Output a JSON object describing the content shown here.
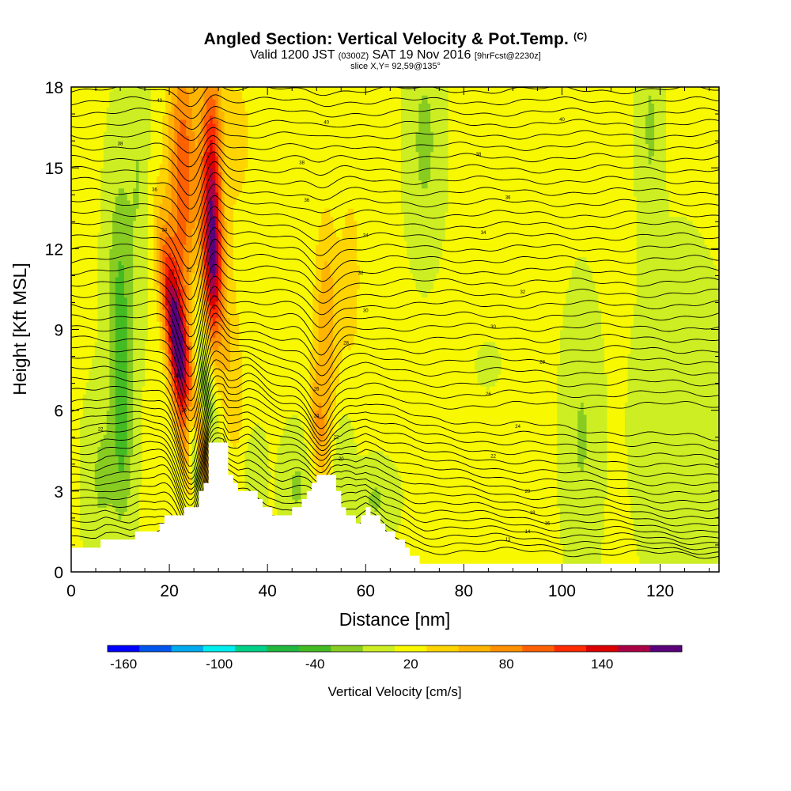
{
  "header": {
    "title": "Angled Section: Vertical Velocity & Pot.Temp.",
    "title_tag": "(C)",
    "valid_prefix": "Valid 1200 JST",
    "valid_utc": "(0300Z)",
    "valid_date": "SAT 19 Nov 2016",
    "forecast": "[9hrFcst@2230z]",
    "slice": "slice X,Y= 92,59@135°"
  },
  "chart_data": {
    "type": "heatmap",
    "xlabel": "Distance [nm]",
    "ylabel": "Height [Kft MSL]",
    "xlim": [
      0,
      132
    ],
    "ylim": [
      0,
      18
    ],
    "x_ticks": [
      0,
      20,
      40,
      60,
      80,
      100,
      120
    ],
    "y_ticks": [
      0,
      3,
      6,
      9,
      12,
      15,
      18
    ],
    "colorbar": {
      "label": "Vertical Velocity [cm/s]",
      "min": -170,
      "step": 20,
      "colors": [
        "#0000ff",
        "#0055ee",
        "#00aaee",
        "#00eeee",
        "#00d088",
        "#22b840",
        "#44bb22",
        "#88cc22",
        "#ccee22",
        "#f8f800",
        "#ffd400",
        "#ffb400",
        "#ff9000",
        "#ff6000",
        "#ff2a00",
        "#dd0000",
        "#aa0044",
        "#5a007a"
      ],
      "tick_values": [
        -160,
        -100,
        -40,
        20,
        80,
        140
      ]
    },
    "terrain": [
      [
        0,
        1
      ],
      [
        5,
        1
      ],
      [
        7,
        1.3
      ],
      [
        12,
        1.3
      ],
      [
        14,
        1.6
      ],
      [
        17,
        1.6
      ],
      [
        19,
        2
      ],
      [
        23,
        2.3
      ],
      [
        25,
        2.5
      ],
      [
        27,
        3.4
      ],
      [
        28,
        4.8
      ],
      [
        31,
        4.8
      ],
      [
        32,
        3.6
      ],
      [
        34,
        3
      ],
      [
        36,
        3.1
      ],
      [
        38,
        2.7
      ],
      [
        40,
        2.3
      ],
      [
        43,
        2.1
      ],
      [
        45,
        2.3
      ],
      [
        47,
        2.6
      ],
      [
        50,
        3.6
      ],
      [
        53,
        3.6
      ],
      [
        55,
        2.3
      ],
      [
        58,
        1.9
      ],
      [
        60,
        2.3
      ],
      [
        62,
        2.0
      ],
      [
        64,
        1.5
      ],
      [
        66,
        1.2
      ],
      [
        68,
        0.9
      ],
      [
        70,
        0.5
      ],
      [
        72,
        0.3
      ],
      [
        132,
        0.3
      ]
    ],
    "velocity_features": [
      {
        "x": 22,
        "z": 8.0,
        "sx": 1.6,
        "sz": 3.0,
        "shear": -0.7,
        "value": 165
      },
      {
        "x": 23,
        "z": 12.5,
        "sx": 2.2,
        "sz": 3.5,
        "shear": 0,
        "value": 60
      },
      {
        "x": 22.5,
        "z": 16.5,
        "sx": 2.2,
        "sz": 3.0,
        "shear": 0,
        "value": 50
      },
      {
        "x": 25,
        "z": 4.5,
        "sx": 0.9,
        "sz": 1.6,
        "shear": -0.6,
        "value": -130
      },
      {
        "x": 27.5,
        "z": 6.5,
        "sx": 1.4,
        "sz": 2.8,
        "shear": -0.4,
        "value": -55
      },
      {
        "x": 28.5,
        "z": 14.0,
        "sx": 1.5,
        "sz": 3.5,
        "shear": 0,
        "value": 120
      },
      {
        "x": 29,
        "z": 11.0,
        "sx": 1.2,
        "sz": 2.0,
        "shear": 0,
        "value": 60
      },
      {
        "x": 27,
        "z": 4.2,
        "sx": 1.5,
        "sz": 1.2,
        "shear": -0.5,
        "value": 75
      },
      {
        "x": 32,
        "z": 8.0,
        "sx": 2.0,
        "sz": 3.0,
        "shear": -0.5,
        "value": 35
      },
      {
        "x": 34,
        "z": 16,
        "sx": 4.5,
        "sz": 4.0,
        "shear": 0,
        "value": 20
      },
      {
        "x": 10,
        "z": 10.0,
        "sx": 1.8,
        "sz": 3.5,
        "shear": 0,
        "value": -45
      },
      {
        "x": 10.5,
        "z": 5.0,
        "sx": 1.5,
        "sz": 2.5,
        "shear": 0,
        "value": -35
      },
      {
        "x": 6,
        "z": 3.5,
        "sx": 2.0,
        "sz": 2.0,
        "shear": 0,
        "value": -25
      },
      {
        "x": 14,
        "z": 15,
        "sx": 1.5,
        "sz": 3.0,
        "shear": 0,
        "value": -22
      },
      {
        "x": 52,
        "z": 9.0,
        "sx": 1.8,
        "sz": 3.0,
        "shear": 0,
        "value": 55
      },
      {
        "x": 50.5,
        "z": 5.2,
        "sx": 1.3,
        "sz": 1.5,
        "shear": -0.4,
        "value": 45
      },
      {
        "x": 57,
        "z": 11,
        "sx": 1.5,
        "sz": 2.5,
        "shear": 0,
        "value": 30
      },
      {
        "x": 55,
        "z": 3.8,
        "sx": 1.5,
        "sz": 1.5,
        "shear": 0,
        "value": -25
      },
      {
        "x": 46,
        "z": 3.2,
        "sx": 2.0,
        "sz": 1.2,
        "shear": 0,
        "value": -25
      },
      {
        "x": 62,
        "z": 2.7,
        "sx": 2.5,
        "sz": 0.8,
        "shear": 0,
        "value": -25
      },
      {
        "x": 37,
        "z": 3.7,
        "sx": 1.5,
        "sz": 1.0,
        "shear": 0,
        "value": -25
      },
      {
        "x": 72,
        "z": 16,
        "sx": 2.2,
        "sz": 2.5,
        "shear": 0,
        "value": -28
      },
      {
        "x": 118,
        "z": 16.5,
        "sx": 1.5,
        "sz": 2.5,
        "shear": 0,
        "value": -25
      },
      {
        "x": 104,
        "z": 5.0,
        "sx": 2.3,
        "sz": 3.0,
        "shear": 0,
        "value": -24
      },
      {
        "x": 124,
        "z": 5.5,
        "sx": 5.0,
        "sz": 3.5,
        "shear": 0,
        "value": -22
      },
      {
        "x": 85,
        "z": 7.7,
        "sx": 1.2,
        "sz": 0.4,
        "shear": 0,
        "value": -22
      }
    ],
    "theta_labels": [
      {
        "x": 18,
        "z": 17.5,
        "text": "40"
      },
      {
        "x": 10,
        "z": 15.9,
        "text": "38"
      },
      {
        "x": 17,
        "z": 14.2,
        "text": "36"
      },
      {
        "x": 19,
        "z": 12.7,
        "text": "34"
      },
      {
        "x": 24,
        "z": 11.2,
        "text": "32"
      },
      {
        "x": 24,
        "z": 8.3,
        "text": "30"
      },
      {
        "x": 21.5,
        "z": 7.3,
        "text": "28"
      },
      {
        "x": 23,
        "z": 6.0,
        "text": "26"
      },
      {
        "x": 6,
        "z": 5.3,
        "text": "22"
      },
      {
        "x": 52,
        "z": 16.7,
        "text": "40"
      },
      {
        "x": 47,
        "z": 15.2,
        "text": "38"
      },
      {
        "x": 48,
        "z": 13.8,
        "text": "36"
      },
      {
        "x": 60,
        "z": 12.5,
        "text": "34"
      },
      {
        "x": 59,
        "z": 11.1,
        "text": "32"
      },
      {
        "x": 60,
        "z": 9.7,
        "text": "30"
      },
      {
        "x": 56,
        "z": 8.5,
        "text": "28"
      },
      {
        "x": 50,
        "z": 6.8,
        "text": "26"
      },
      {
        "x": 50,
        "z": 5.8,
        "text": "24"
      },
      {
        "x": 54,
        "z": 5.0,
        "text": "22"
      },
      {
        "x": 55,
        "z": 4.2,
        "text": "20"
      },
      {
        "x": 100,
        "z": 16.8,
        "text": "40"
      },
      {
        "x": 83,
        "z": 15.5,
        "text": "38"
      },
      {
        "x": 89,
        "z": 13.9,
        "text": "36"
      },
      {
        "x": 84,
        "z": 12.6,
        "text": "34"
      },
      {
        "x": 92,
        "z": 10.4,
        "text": "32"
      },
      {
        "x": 86,
        "z": 9.1,
        "text": "30"
      },
      {
        "x": 96,
        "z": 7.8,
        "text": "28"
      },
      {
        "x": 85,
        "z": 6.6,
        "text": "26"
      },
      {
        "x": 91,
        "z": 5.4,
        "text": "24"
      },
      {
        "x": 86,
        "z": 4.3,
        "text": "22"
      },
      {
        "x": 93,
        "z": 3.0,
        "text": "20"
      },
      {
        "x": 94,
        "z": 2.2,
        "text": "18"
      },
      {
        "x": 97,
        "z": 1.8,
        "text": "16"
      },
      {
        "x": 93,
        "z": 1.5,
        "text": "14"
      },
      {
        "x": 89,
        "z": 1.2,
        "text": "12"
      }
    ]
  }
}
